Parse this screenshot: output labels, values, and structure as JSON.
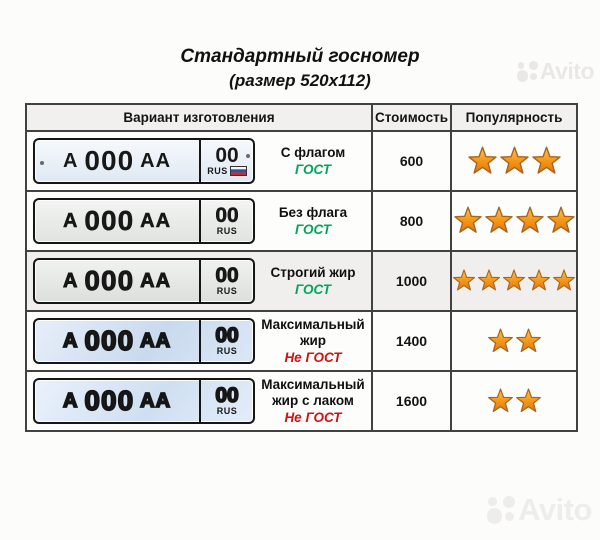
{
  "page": {
    "title": "Стандартный госномер",
    "subtitle": "(размер 520x112)"
  },
  "watermark": {
    "brand": "Avito"
  },
  "colors": {
    "gost_green": "#00a65c",
    "ne_gost_red": "#cc1414",
    "star_orange": "#f59d1f",
    "table_border": "#414141",
    "shaded_row": "#f0efed"
  },
  "table": {
    "headers": [
      "Вариант изготовления",
      "Стоимость",
      "Популярность"
    ],
    "rows": [
      {
        "plate": {
          "series_letter": "А",
          "digits": "000",
          "letters": "АА",
          "region": "00",
          "country": "RUS",
          "flag": true,
          "style": "flag"
        },
        "variant": "С флагом",
        "standard": "ГОСТ",
        "standard_kind": "gost",
        "price": "600",
        "stars": 3,
        "shaded": false
      },
      {
        "plate": {
          "series_letter": "А",
          "digits": "000",
          "letters": "АА",
          "region": "00",
          "country": "RUS",
          "flag": false,
          "style": "plain"
        },
        "variant": "Без флага",
        "standard": "ГОСТ",
        "standard_kind": "gost",
        "price": "800",
        "stars": 4,
        "shaded": false
      },
      {
        "plate": {
          "series_letter": "А",
          "digits": "000",
          "letters": "АА",
          "region": "00",
          "country": "RUS",
          "flag": false,
          "style": "bold"
        },
        "variant": "Строгий жир",
        "standard": "ГОСТ",
        "standard_kind": "gost",
        "price": "1000",
        "stars": 5,
        "shaded": true
      },
      {
        "plate": {
          "series_letter": "А",
          "digits": "000",
          "letters": "АА",
          "region": "00",
          "country": "RUS",
          "flag": false,
          "style": "max"
        },
        "variant": "Максимальный жир",
        "standard": "Не ГОСТ",
        "standard_kind": "negost",
        "price": "1400",
        "stars": 2,
        "shaded": false
      },
      {
        "plate": {
          "series_letter": "А",
          "digits": "000",
          "letters": "АА",
          "region": "00",
          "country": "RUS",
          "flag": false,
          "style": "maxlac"
        },
        "variant": "Максимальный жир с лаком",
        "standard": "Не ГОСТ",
        "standard_kind": "negost",
        "price": "1600",
        "stars": 2,
        "shaded": false
      }
    ]
  }
}
